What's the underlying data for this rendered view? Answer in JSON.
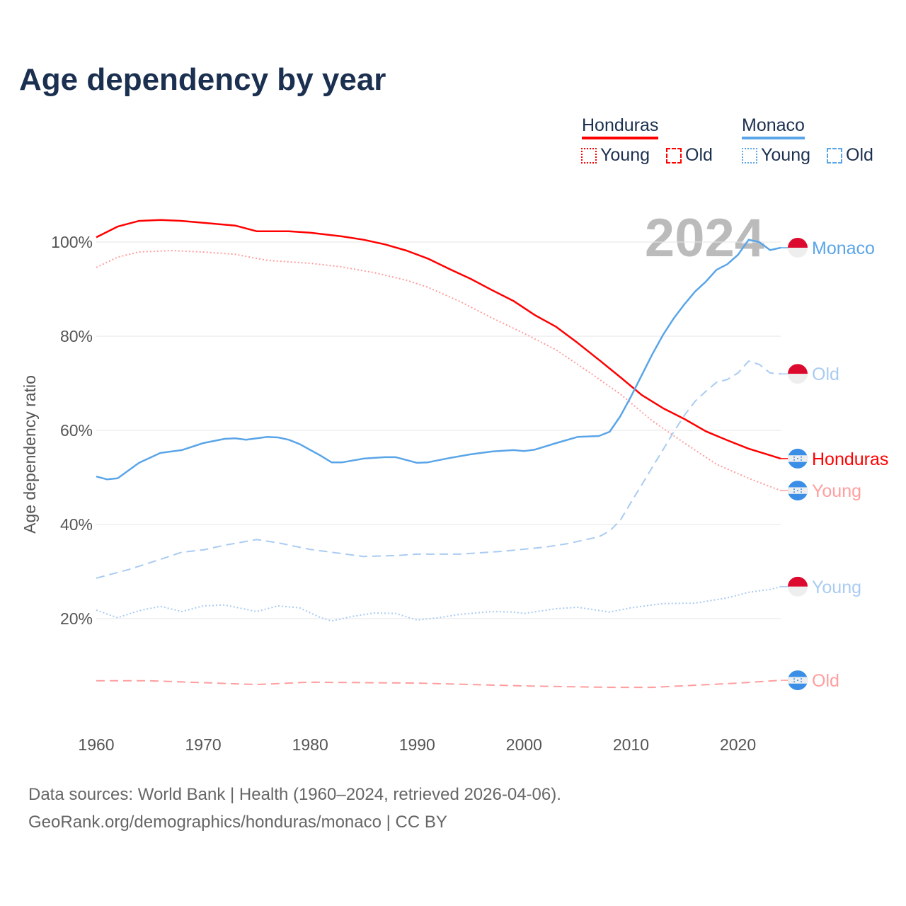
{
  "title": "Age dependency by year",
  "legend": {
    "countries": [
      {
        "name": "Honduras",
        "color": "#ff0000",
        "light": "#ff9e9e",
        "young": "Young",
        "old": "Old"
      },
      {
        "name": "Monaco",
        "color": "#5aa5e8",
        "light": "#a9cbf2",
        "young": "Young",
        "old": "Old"
      }
    ]
  },
  "year_watermark": "2024",
  "source_lines": [
    "Data sources: World Bank | Health (1960–2024, retrieved 2026-04-06).",
    "GeoRank.org/demographics/honduras/monaco | CC BY"
  ],
  "chart_data": {
    "type": "line",
    "title": "Age dependency by year",
    "xlabel": "",
    "ylabel": "Age dependency ratio",
    "xlim": [
      1960,
      2024
    ],
    "ylim": [
      0,
      110
    ],
    "x_ticks": [
      "1960",
      "1970",
      "1980",
      "1990",
      "2000",
      "2010",
      "2020"
    ],
    "y_ticks": [
      {
        "v": 20,
        "label": "20%"
      },
      {
        "v": 40,
        "label": "40%"
      },
      {
        "v": 60,
        "label": "60%"
      },
      {
        "v": 80,
        "label": "80%"
      },
      {
        "v": 100,
        "label": "100%"
      }
    ],
    "grid": true,
    "series": [
      {
        "name": "Honduras",
        "end_label": "Honduras",
        "flag": "honduras",
        "style": "solid",
        "color": "#ff0000",
        "points": [
          [
            1960,
            101.0
          ],
          [
            1962,
            103.3
          ],
          [
            1964,
            104.5
          ],
          [
            1966,
            104.7
          ],
          [
            1968,
            104.5
          ],
          [
            1970,
            104.1
          ],
          [
            1973,
            103.5
          ],
          [
            1975,
            102.3
          ],
          [
            1978,
            102.3
          ],
          [
            1980,
            102.0
          ],
          [
            1983,
            101.2
          ],
          [
            1985,
            100.5
          ],
          [
            1987,
            99.5
          ],
          [
            1989,
            98.2
          ],
          [
            1991,
            96.5
          ],
          [
            1993,
            94.3
          ],
          [
            1995,
            92.2
          ],
          [
            1997,
            89.8
          ],
          [
            1999,
            87.5
          ],
          [
            2001,
            84.5
          ],
          [
            2003,
            82.0
          ],
          [
            2005,
            78.6
          ],
          [
            2007,
            75.0
          ],
          [
            2009,
            71.3
          ],
          [
            2011,
            67.5
          ],
          [
            2013,
            64.7
          ],
          [
            2015,
            62.4
          ],
          [
            2017,
            59.8
          ],
          [
            2019,
            57.9
          ],
          [
            2021,
            56.1
          ],
          [
            2023,
            54.7
          ],
          [
            2024,
            54.0
          ]
        ]
      },
      {
        "name": "Honduras Young",
        "end_label": "Young",
        "flag": "honduras",
        "style": "dotted",
        "color": "#ff9e9e",
        "points": [
          [
            1960,
            94.6
          ],
          [
            1962,
            96.8
          ],
          [
            1964,
            97.9
          ],
          [
            1967,
            98.2
          ],
          [
            1970,
            97.9
          ],
          [
            1973,
            97.4
          ],
          [
            1976,
            96.1
          ],
          [
            1980,
            95.5
          ],
          [
            1983,
            94.7
          ],
          [
            1986,
            93.5
          ],
          [
            1989,
            91.9
          ],
          [
            1991,
            90.4
          ],
          [
            1994,
            87.4
          ],
          [
            1997,
            83.9
          ],
          [
            2000,
            80.6
          ],
          [
            2003,
            77.1
          ],
          [
            2006,
            72.5
          ],
          [
            2009,
            67.7
          ],
          [
            2012,
            62.0
          ],
          [
            2015,
            57.3
          ],
          [
            2018,
            52.8
          ],
          [
            2021,
            49.8
          ],
          [
            2024,
            47.2
          ]
        ]
      },
      {
        "name": "Honduras Old",
        "end_label": "Old",
        "flag": "honduras",
        "style": "dashed",
        "color": "#ff9e9e",
        "points": [
          [
            1960,
            6.8
          ],
          [
            1965,
            6.8
          ],
          [
            1975,
            6.0
          ],
          [
            1980,
            6.5
          ],
          [
            1990,
            6.3
          ],
          [
            2000,
            5.7
          ],
          [
            2008,
            5.4
          ],
          [
            2012,
            5.4
          ],
          [
            2020,
            6.3
          ],
          [
            2024,
            6.9
          ]
        ]
      },
      {
        "name": "Monaco",
        "end_label": "Monaco",
        "flag": "monaco",
        "style": "solid",
        "color": "#5aa5e8",
        "points": [
          [
            1960,
            50.2
          ],
          [
            1961,
            49.6
          ],
          [
            1962,
            49.8
          ],
          [
            1964,
            53.1
          ],
          [
            1966,
            55.2
          ],
          [
            1968,
            55.8
          ],
          [
            1970,
            57.3
          ],
          [
            1972,
            58.2
          ],
          [
            1973,
            58.3
          ],
          [
            1974,
            58.0
          ],
          [
            1976,
            58.6
          ],
          [
            1977,
            58.5
          ],
          [
            1978,
            58.0
          ],
          [
            1979,
            57.1
          ],
          [
            1981,
            54.6
          ],
          [
            1982,
            53.2
          ],
          [
            1983,
            53.2
          ],
          [
            1985,
            54.0
          ],
          [
            1987,
            54.3
          ],
          [
            1988,
            54.3
          ],
          [
            1990,
            53.1
          ],
          [
            1991,
            53.2
          ],
          [
            1993,
            54.1
          ],
          [
            1995,
            54.9
          ],
          [
            1997,
            55.5
          ],
          [
            1999,
            55.8
          ],
          [
            2000,
            55.6
          ],
          [
            2001,
            55.9
          ],
          [
            2003,
            57.3
          ],
          [
            2005,
            58.6
          ],
          [
            2007,
            58.8
          ],
          [
            2008,
            59.7
          ],
          [
            2009,
            63.0
          ],
          [
            2010,
            67.2
          ],
          [
            2011,
            71.7
          ],
          [
            2012,
            76.2
          ],
          [
            2013,
            80.3
          ],
          [
            2014,
            83.8
          ],
          [
            2015,
            86.8
          ],
          [
            2016,
            89.5
          ],
          [
            2017,
            91.6
          ],
          [
            2018,
            94.1
          ],
          [
            2019,
            95.3
          ],
          [
            2020,
            97.3
          ],
          [
            2021,
            100.5
          ],
          [
            2022,
            100.0
          ],
          [
            2023,
            98.3
          ],
          [
            2024,
            98.8
          ]
        ]
      },
      {
        "name": "Monaco Old",
        "end_label": "Old",
        "flag": "monaco",
        "style": "dashed",
        "color": "#a9cbf2",
        "points": [
          [
            1960,
            28.6
          ],
          [
            1963,
            30.4
          ],
          [
            1966,
            32.6
          ],
          [
            1968,
            34.1
          ],
          [
            1970,
            34.6
          ],
          [
            1972,
            35.6
          ],
          [
            1975,
            36.8
          ],
          [
            1977,
            36.1
          ],
          [
            1980,
            34.7
          ],
          [
            1983,
            33.8
          ],
          [
            1985,
            33.2
          ],
          [
            1988,
            33.4
          ],
          [
            1990,
            33.7
          ],
          [
            1994,
            33.7
          ],
          [
            1998,
            34.3
          ],
          [
            2002,
            35.2
          ],
          [
            2004,
            35.9
          ],
          [
            2007,
            37.4
          ],
          [
            2008,
            38.6
          ],
          [
            2009,
            40.9
          ],
          [
            2010,
            44.7
          ],
          [
            2011,
            48.4
          ],
          [
            2012,
            52.2
          ],
          [
            2013,
            55.9
          ],
          [
            2014,
            59.7
          ],
          [
            2015,
            63.2
          ],
          [
            2016,
            66.2
          ],
          [
            2017,
            68.3
          ],
          [
            2018,
            70.2
          ],
          [
            2019,
            70.8
          ],
          [
            2020,
            72.2
          ],
          [
            2021,
            74.7
          ],
          [
            2022,
            74.0
          ],
          [
            2023,
            72.2
          ],
          [
            2024,
            72.0
          ]
        ]
      },
      {
        "name": "Monaco Young",
        "end_label": "Young",
        "flag": "monaco",
        "style": "dotted",
        "color": "#a9cbf2",
        "points": [
          [
            1960,
            21.8
          ],
          [
            1962,
            20.2
          ],
          [
            1964,
            21.7
          ],
          [
            1966,
            22.6
          ],
          [
            1968,
            21.5
          ],
          [
            1970,
            22.7
          ],
          [
            1972,
            22.9
          ],
          [
            1975,
            21.5
          ],
          [
            1977,
            22.7
          ],
          [
            1979,
            22.3
          ],
          [
            1981,
            20.2
          ],
          [
            1982,
            19.5
          ],
          [
            1984,
            20.5
          ],
          [
            1986,
            21.2
          ],
          [
            1988,
            21.1
          ],
          [
            1990,
            19.7
          ],
          [
            1992,
            20.2
          ],
          [
            1994,
            20.9
          ],
          [
            1997,
            21.5
          ],
          [
            1999,
            21.4
          ],
          [
            2000,
            21.1
          ],
          [
            2003,
            22.1
          ],
          [
            2005,
            22.4
          ],
          [
            2008,
            21.4
          ],
          [
            2010,
            22.3
          ],
          [
            2013,
            23.2
          ],
          [
            2016,
            23.3
          ],
          [
            2019,
            24.4
          ],
          [
            2021,
            25.6
          ],
          [
            2023,
            26.2
          ],
          [
            2024,
            26.8
          ]
        ]
      }
    ]
  }
}
